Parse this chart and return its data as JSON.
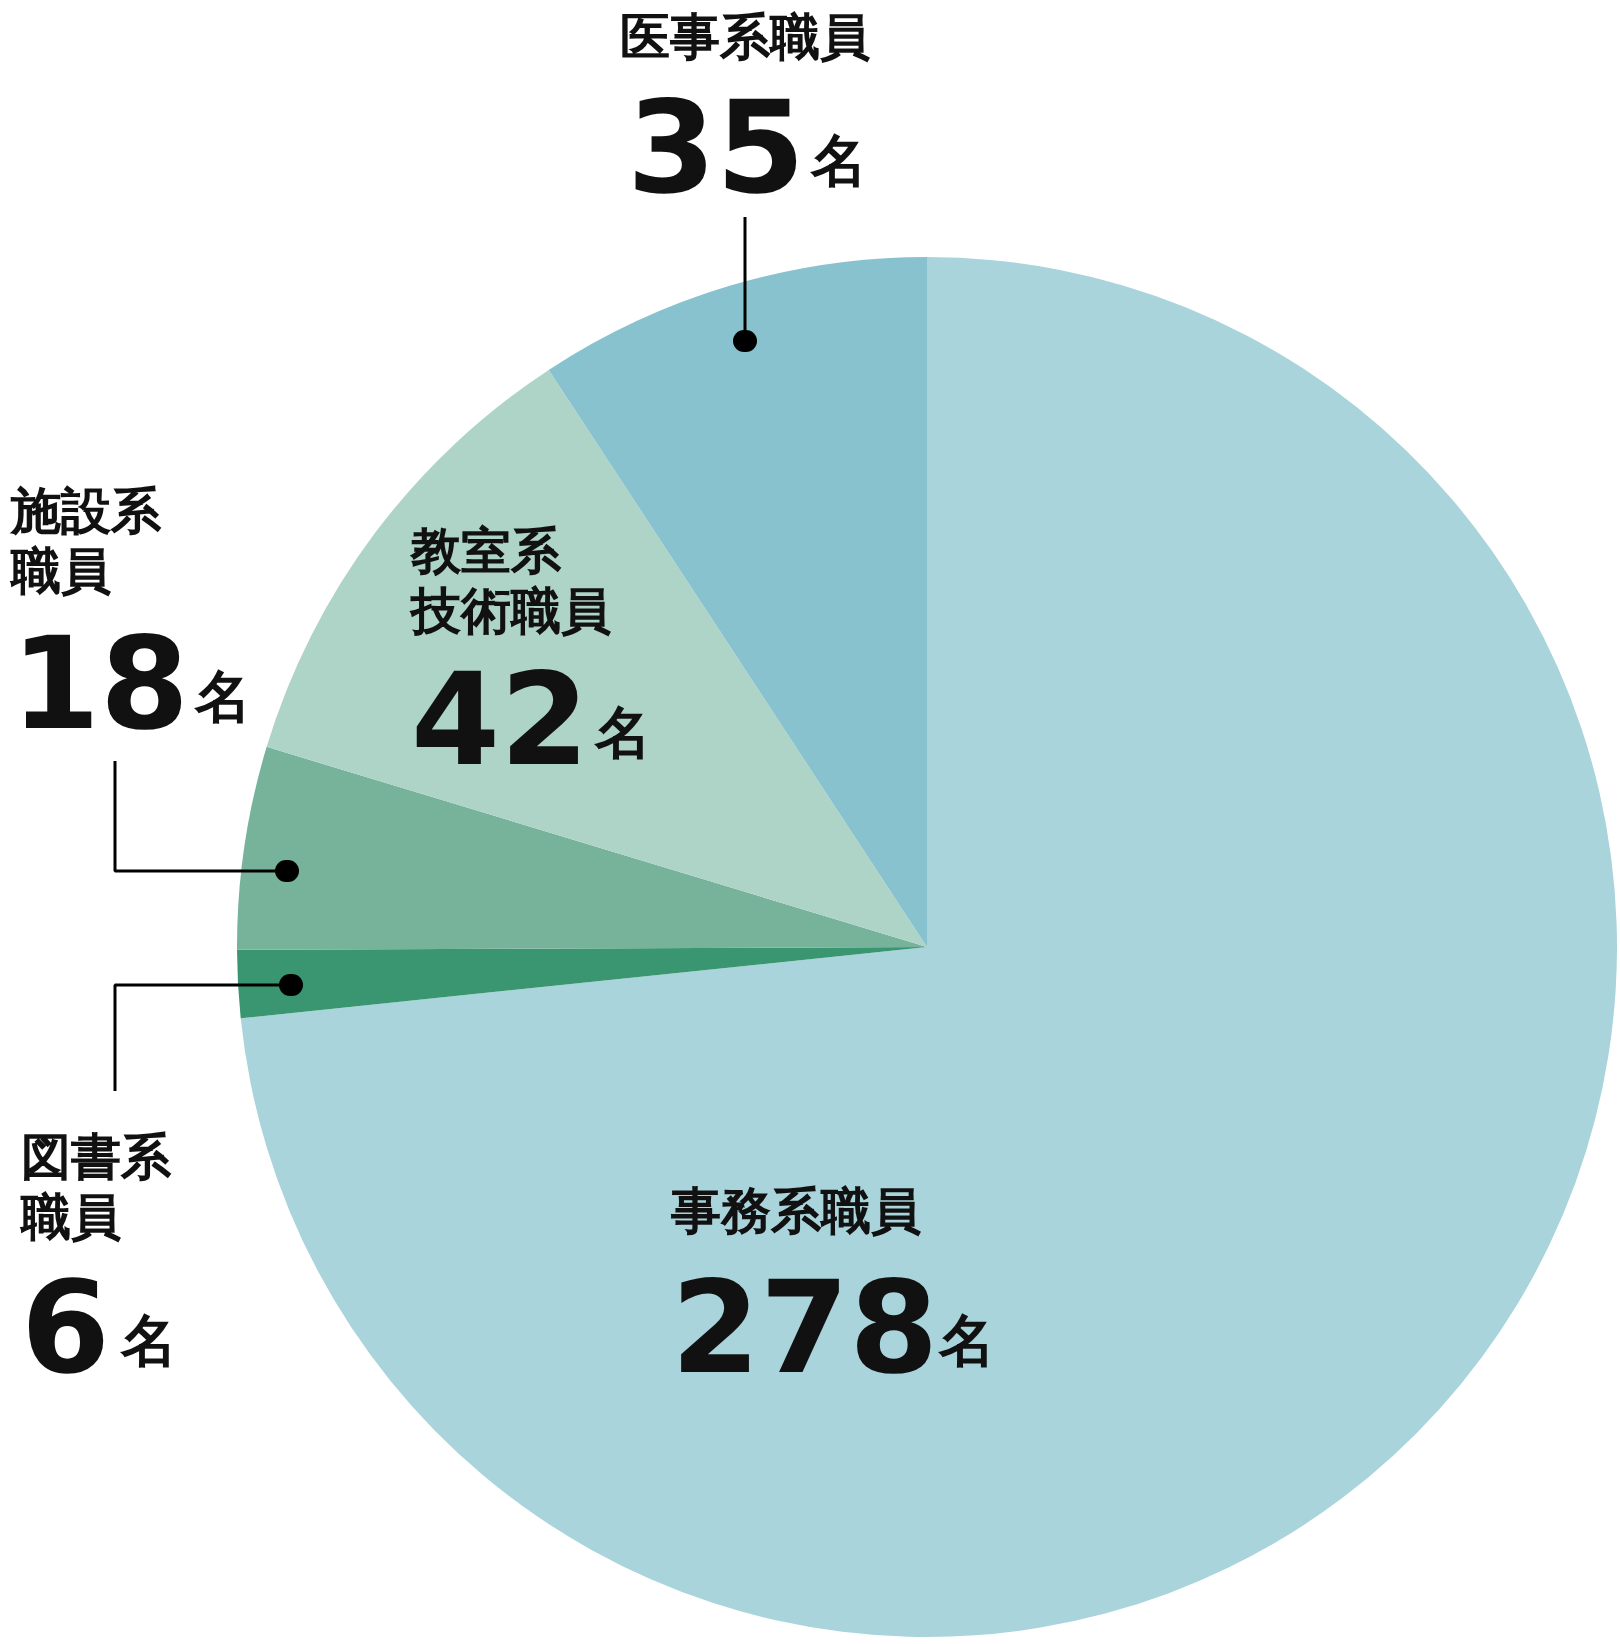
{
  "chart_data": {
    "type": "pie",
    "categories": [
      "事務系職員",
      "図書系職員",
      "施設系職員",
      "教室系技術職員",
      "医事系職員"
    ],
    "values": [
      278,
      6,
      18,
      42,
      35
    ],
    "value_labels": [
      "278名",
      "6名",
      "18名",
      "42名",
      "35名"
    ],
    "colors": [
      "#a9d4db",
      "#3a9670",
      "#76b39a",
      "#aed3c7",
      "#88c2cf"
    ]
  }
}
